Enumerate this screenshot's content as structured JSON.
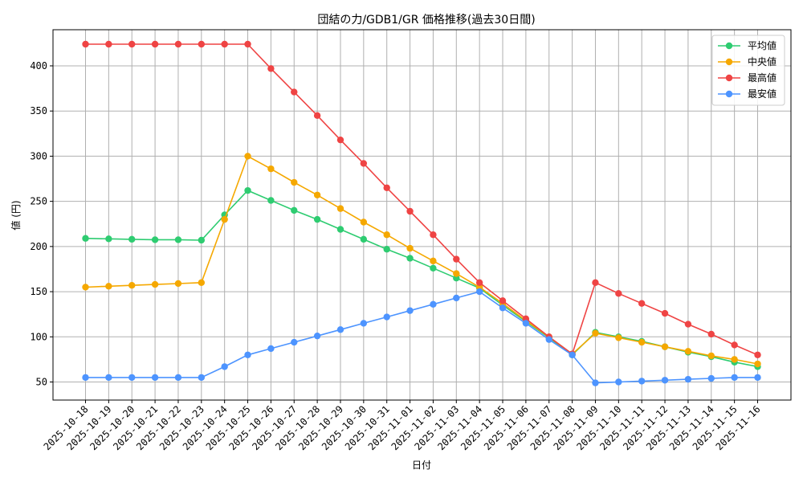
{
  "chart_data": {
    "type": "line",
    "title": "団結の力/GDB1/GR 価格推移(過去30日間)",
    "xlabel": "日付",
    "ylabel": "値 (円)",
    "ylim": [
      30,
      440
    ],
    "yticks": [
      50,
      100,
      150,
      200,
      250,
      300,
      350,
      400
    ],
    "grid": true,
    "legend_position": "top-right",
    "categories": [
      "2025-10-18",
      "2025-10-19",
      "2025-10-20",
      "2025-10-21",
      "2025-10-22",
      "2025-10-23",
      "2025-10-24",
      "2025-10-25",
      "2025-10-26",
      "2025-10-27",
      "2025-10-28",
      "2025-10-29",
      "2025-10-30",
      "2025-10-31",
      "2025-11-01",
      "2025-11-02",
      "2025-11-03",
      "2025-11-04",
      "2025-11-05",
      "2025-11-06",
      "2025-11-07",
      "2025-11-08",
      "2025-11-09",
      "2025-11-10",
      "2025-11-11",
      "2025-11-12",
      "2025-11-13",
      "2025-11-14",
      "2025-11-15",
      "2025-11-16"
    ],
    "series": [
      {
        "name": "平均値",
        "color": "#2ecc71",
        "values": [
          209,
          208.5,
          208,
          207.5,
          207.5,
          207,
          235,
          262,
          251,
          240,
          230,
          219,
          208,
          197,
          187,
          176,
          165,
          154,
          135,
          117,
          99,
          80,
          105,
          100,
          95,
          89,
          83,
          78,
          72,
          67
        ]
      },
      {
        "name": "中央値",
        "color": "#f5a800",
        "values": [
          155,
          156,
          157,
          158,
          159,
          160,
          230,
          300,
          286,
          271,
          257,
          242,
          227,
          213,
          198,
          184,
          170,
          155,
          137,
          118,
          100,
          81,
          104,
          99,
          94,
          89,
          84,
          79,
          75,
          70
        ]
      },
      {
        "name": "最高値",
        "color": "#ef4444",
        "values": [
          424,
          424,
          424,
          424,
          424,
          424,
          424,
          424,
          397,
          371,
          345,
          318,
          292,
          265,
          239,
          213,
          186,
          160,
          140,
          120,
          100,
          81,
          160,
          148,
          137,
          126,
          114,
          103,
          91,
          80
        ]
      },
      {
        "name": "最安値",
        "color": "#4d94ff",
        "values": [
          55,
          55,
          55,
          55,
          55,
          55,
          67,
          80,
          87,
          94,
          101,
          108,
          115,
          122,
          129,
          136,
          143,
          150,
          132,
          115,
          97,
          80,
          49,
          50,
          51,
          52,
          53,
          54,
          55,
          55
        ]
      }
    ]
  }
}
